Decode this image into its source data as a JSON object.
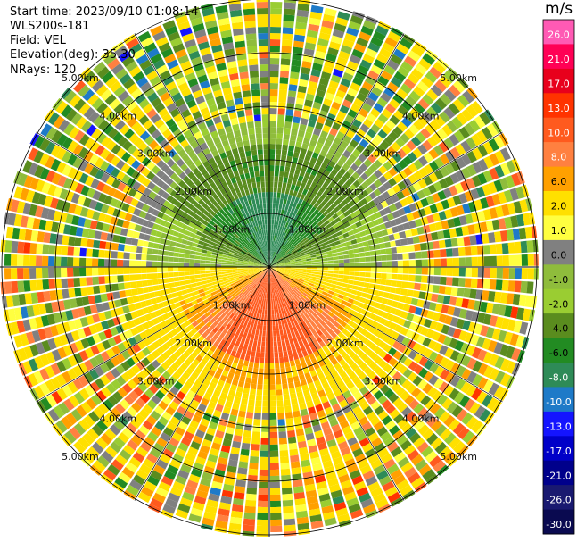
{
  "header": {
    "start_time": "Start time: 2023/09/10 01:08:14",
    "instrument": "WLS200s-181",
    "field": "Field: VEL",
    "elevation": "Elevation(deg): 35.30",
    "nrays": "NRays: 120"
  },
  "chart_data": {
    "type": "heatmap",
    "projection": "polar-ppi",
    "field": "VEL",
    "nrays": 120,
    "elevation_deg": 35.3,
    "range_rings_km": [
      1.0,
      2.0,
      3.0,
      4.0,
      5.0
    ],
    "ring_labels": [
      "1.00km",
      "2.00km",
      "3.00km",
      "4.00km",
      "5.00km"
    ],
    "grid": true,
    "pattern_description": [
      {
        "sector": "north, 0-2.5 km",
        "velocity_range_ms": [
          -8,
          -2
        ]
      },
      {
        "sector": "south, 0-1.8 km",
        "velocity_range_ms": [
          8,
          13
        ]
      },
      {
        "sector": "all azimuths, 2.5-5 km",
        "velocity_range_ms": [
          -30,
          26
        ],
        "note": "noisy"
      }
    ],
    "colorbar": {
      "unit": "m/s",
      "ticks": [
        "26.0",
        "21.0",
        "17.0",
        "13.0",
        "10.0",
        "8.0",
        "6.0",
        "2.0",
        "1.0",
        "0.0",
        "-1.0",
        "-2.0",
        "-4.0",
        "-6.0",
        "-8.0",
        "-10.0",
        "-13.0",
        "-17.0",
        "-21.0",
        "-26.0",
        "-30.0"
      ],
      "colors": [
        "#ff5ab4",
        "#ff0055",
        "#e8001c",
        "#ff3300",
        "#ff5a1e",
        "#ff8040",
        "#ffa000",
        "#ffe000",
        "#ffff40",
        "#808080",
        "#8fbc3c",
        "#9acd32",
        "#5a8c1e",
        "#228b22",
        "#2e8b57",
        "#1e7ac8",
        "#1414ff",
        "#0000c8",
        "#00008b",
        "#191970",
        "#0a0a50"
      ]
    }
  }
}
